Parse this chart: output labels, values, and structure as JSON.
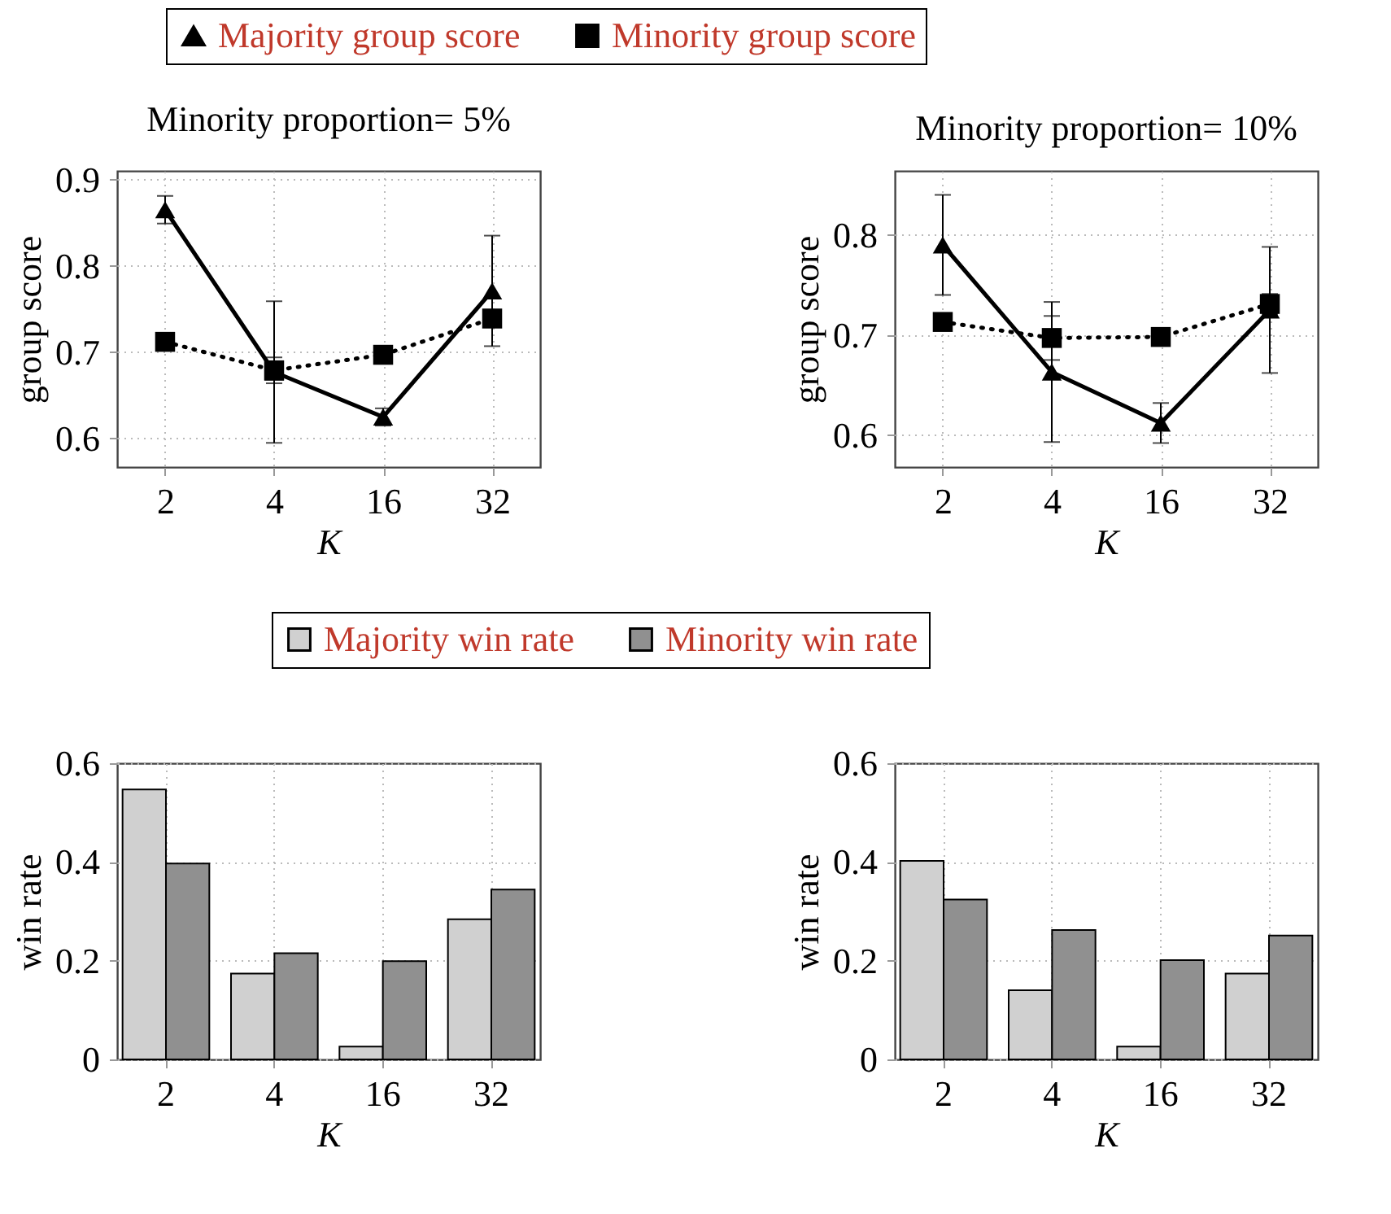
{
  "chart_data": [
    {
      "type": "line",
      "title": "Minority proportion= 5%",
      "xlabel": "K",
      "ylabel": "group score",
      "categories": [
        "2",
        "4",
        "16",
        "32"
      ],
      "ylim": [
        0.567,
        0.91
      ],
      "yticks": [
        0.6,
        0.7,
        0.8,
        0.9
      ],
      "grid": true,
      "legend": "top",
      "series": [
        {
          "name": "Majority group score",
          "color": "#000000",
          "marker": "triangle",
          "line_style": "solid",
          "values": [
            0.865,
            0.677,
            0.625,
            0.771
          ],
          "errors": [
            0.016,
            0.082,
            0.01,
            0.064
          ]
        },
        {
          "name": "Minority group score",
          "color": "#000000",
          "marker": "square",
          "line_style": "dotted",
          "values": [
            0.712,
            0.679,
            0.697,
            0.739
          ],
          "errors": [
            0.005,
            0.015,
            0.005,
            0.01
          ]
        }
      ]
    },
    {
      "type": "line",
      "title": "Minority proportion= 10%",
      "xlabel": "K",
      "ylabel": "group score",
      "categories": [
        "2",
        "4",
        "16",
        "32"
      ],
      "ylim": [
        0.568,
        0.864
      ],
      "yticks": [
        0.6,
        0.7,
        0.8
      ],
      "grid": true,
      "series": [
        {
          "color": "#000000",
          "marker": "triangle",
          "line_style": "solid",
          "values": [
            0.79,
            0.663,
            0.612,
            0.725
          ],
          "errors": [
            0.05,
            0.07,
            0.02,
            0.063
          ]
        },
        {
          "color": "#000000",
          "marker": "square",
          "line_style": "dotted",
          "values": [
            0.713,
            0.697,
            0.698,
            0.731
          ],
          "errors": [
            0.007,
            0.022,
            0.005,
            0.01
          ]
        }
      ]
    },
    {
      "type": "bar",
      "xlabel": "K",
      "ylabel": "win rate",
      "categories": [
        "2",
        "4",
        "16",
        "32"
      ],
      "ylim": [
        0,
        0.6
      ],
      "yticks": [
        0,
        0.2,
        0.4,
        0.6
      ],
      "grid": true,
      "legend": "top",
      "series": [
        {
          "name": "Majority win rate",
          "color": "#d0d0d0",
          "values": [
            0.547,
            0.174,
            0.026,
            0.284
          ]
        },
        {
          "name": "Minority win rate",
          "color": "#909090",
          "values": [
            0.397,
            0.215,
            0.199,
            0.344
          ]
        }
      ]
    },
    {
      "type": "bar",
      "xlabel": "K",
      "ylabel": "win rate",
      "categories": [
        "2",
        "4",
        "16",
        "32"
      ],
      "ylim": [
        0,
        0.6
      ],
      "yticks": [
        0,
        0.2,
        0.4,
        0.6
      ],
      "grid": true,
      "series": [
        {
          "color": "#d0d0d0",
          "values": [
            0.402,
            0.14,
            0.026,
            0.174
          ]
        },
        {
          "color": "#909090",
          "values": [
            0.324,
            0.262,
            0.201,
            0.251
          ]
        }
      ]
    }
  ]
}
